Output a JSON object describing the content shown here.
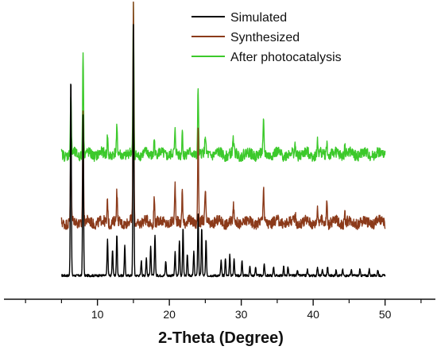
{
  "chart_data": {
    "type": "line",
    "title": "",
    "xlabel": "2-Theta (Degree)",
    "ylabel": "",
    "xlim": [
      -3,
      57
    ],
    "ylim": [
      0,
      1
    ],
    "x_ticks": [
      10,
      20,
      30,
      40,
      50
    ],
    "x_minor_ticks": [
      0,
      5,
      15,
      25,
      35,
      45,
      55
    ],
    "grid": false,
    "y_axis_shown": false,
    "legend_position": "top-right",
    "series": [
      {
        "name": "Simulated",
        "color": "#000000",
        "baseline": 0.08,
        "noise": 0.004,
        "x_start": 5,
        "x_end": 50,
        "peaks": [
          [
            6.3,
            0.68
          ],
          [
            8.0,
            0.54
          ],
          [
            11.4,
            0.12
          ],
          [
            12.1,
            0.09
          ],
          [
            12.7,
            0.14
          ],
          [
            13.8,
            0.1
          ],
          [
            15.0,
            0.85
          ],
          [
            16.1,
            0.05
          ],
          [
            16.8,
            0.06
          ],
          [
            17.4,
            0.1
          ],
          [
            18.0,
            0.14
          ],
          [
            19.5,
            0.05
          ],
          [
            20.8,
            0.08
          ],
          [
            21.4,
            0.12
          ],
          [
            21.9,
            0.16
          ],
          [
            22.5,
            0.07
          ],
          [
            23.4,
            0.08
          ],
          [
            24.0,
            0.21
          ],
          [
            24.5,
            0.16
          ],
          [
            25.1,
            0.12
          ],
          [
            27.2,
            0.05
          ],
          [
            27.8,
            0.06
          ],
          [
            28.4,
            0.07
          ],
          [
            29.0,
            0.06
          ],
          [
            30.1,
            0.05
          ],
          [
            31.2,
            0.03
          ],
          [
            32.0,
            0.03
          ],
          [
            33.2,
            0.04
          ],
          [
            34.5,
            0.03
          ],
          [
            35.9,
            0.03
          ],
          [
            36.5,
            0.03
          ],
          [
            37.8,
            0.02
          ],
          [
            39.2,
            0.02
          ],
          [
            40.6,
            0.03
          ],
          [
            41.3,
            0.02
          ],
          [
            42.0,
            0.03
          ],
          [
            43.2,
            0.02
          ],
          [
            44.1,
            0.02
          ],
          [
            45.3,
            0.02
          ],
          [
            46.5,
            0.02
          ],
          [
            47.8,
            0.02
          ],
          [
            49.0,
            0.02
          ]
        ]
      },
      {
        "name": "Synthesized",
        "color": "#8b3a1a",
        "baseline": 0.26,
        "noise": 0.018,
        "x_start": 5,
        "x_end": 50,
        "peaks": [
          [
            6.3,
            0.26
          ],
          [
            8.0,
            0.38
          ],
          [
            11.4,
            0.08
          ],
          [
            12.7,
            0.1
          ],
          [
            15.0,
            0.74
          ],
          [
            17.9,
            0.09
          ],
          [
            20.8,
            0.12
          ],
          [
            21.8,
            0.12
          ],
          [
            24.0,
            0.33
          ],
          [
            25.0,
            0.1
          ],
          [
            28.9,
            0.06
          ],
          [
            33.1,
            0.12
          ],
          [
            37.5,
            0.03
          ],
          [
            40.6,
            0.05
          ],
          [
            41.9,
            0.08
          ],
          [
            44.4,
            0.03
          ]
        ]
      },
      {
        "name": "After photocatalysis",
        "color": "#3cc92b",
        "baseline": 0.49,
        "noise": 0.018,
        "x_start": 5,
        "x_end": 50,
        "peaks": [
          [
            6.3,
            0.2
          ],
          [
            8.0,
            0.36
          ],
          [
            11.4,
            0.07
          ],
          [
            12.7,
            0.08
          ],
          [
            15.0,
            0.5
          ],
          [
            17.9,
            0.06
          ],
          [
            20.8,
            0.07
          ],
          [
            21.8,
            0.09
          ],
          [
            24.0,
            0.23
          ],
          [
            25.0,
            0.06
          ],
          [
            28.9,
            0.05
          ],
          [
            33.1,
            0.1
          ],
          [
            37.5,
            0.03
          ],
          [
            40.6,
            0.04
          ],
          [
            41.9,
            0.05
          ],
          [
            44.4,
            0.03
          ]
        ]
      }
    ]
  },
  "legend": {
    "items": [
      {
        "label": "Simulated",
        "color": "#000000"
      },
      {
        "label": "Synthesized",
        "color": "#8b3a1a"
      },
      {
        "label": "After photocatalysis",
        "color": "#3cc92b"
      }
    ]
  }
}
